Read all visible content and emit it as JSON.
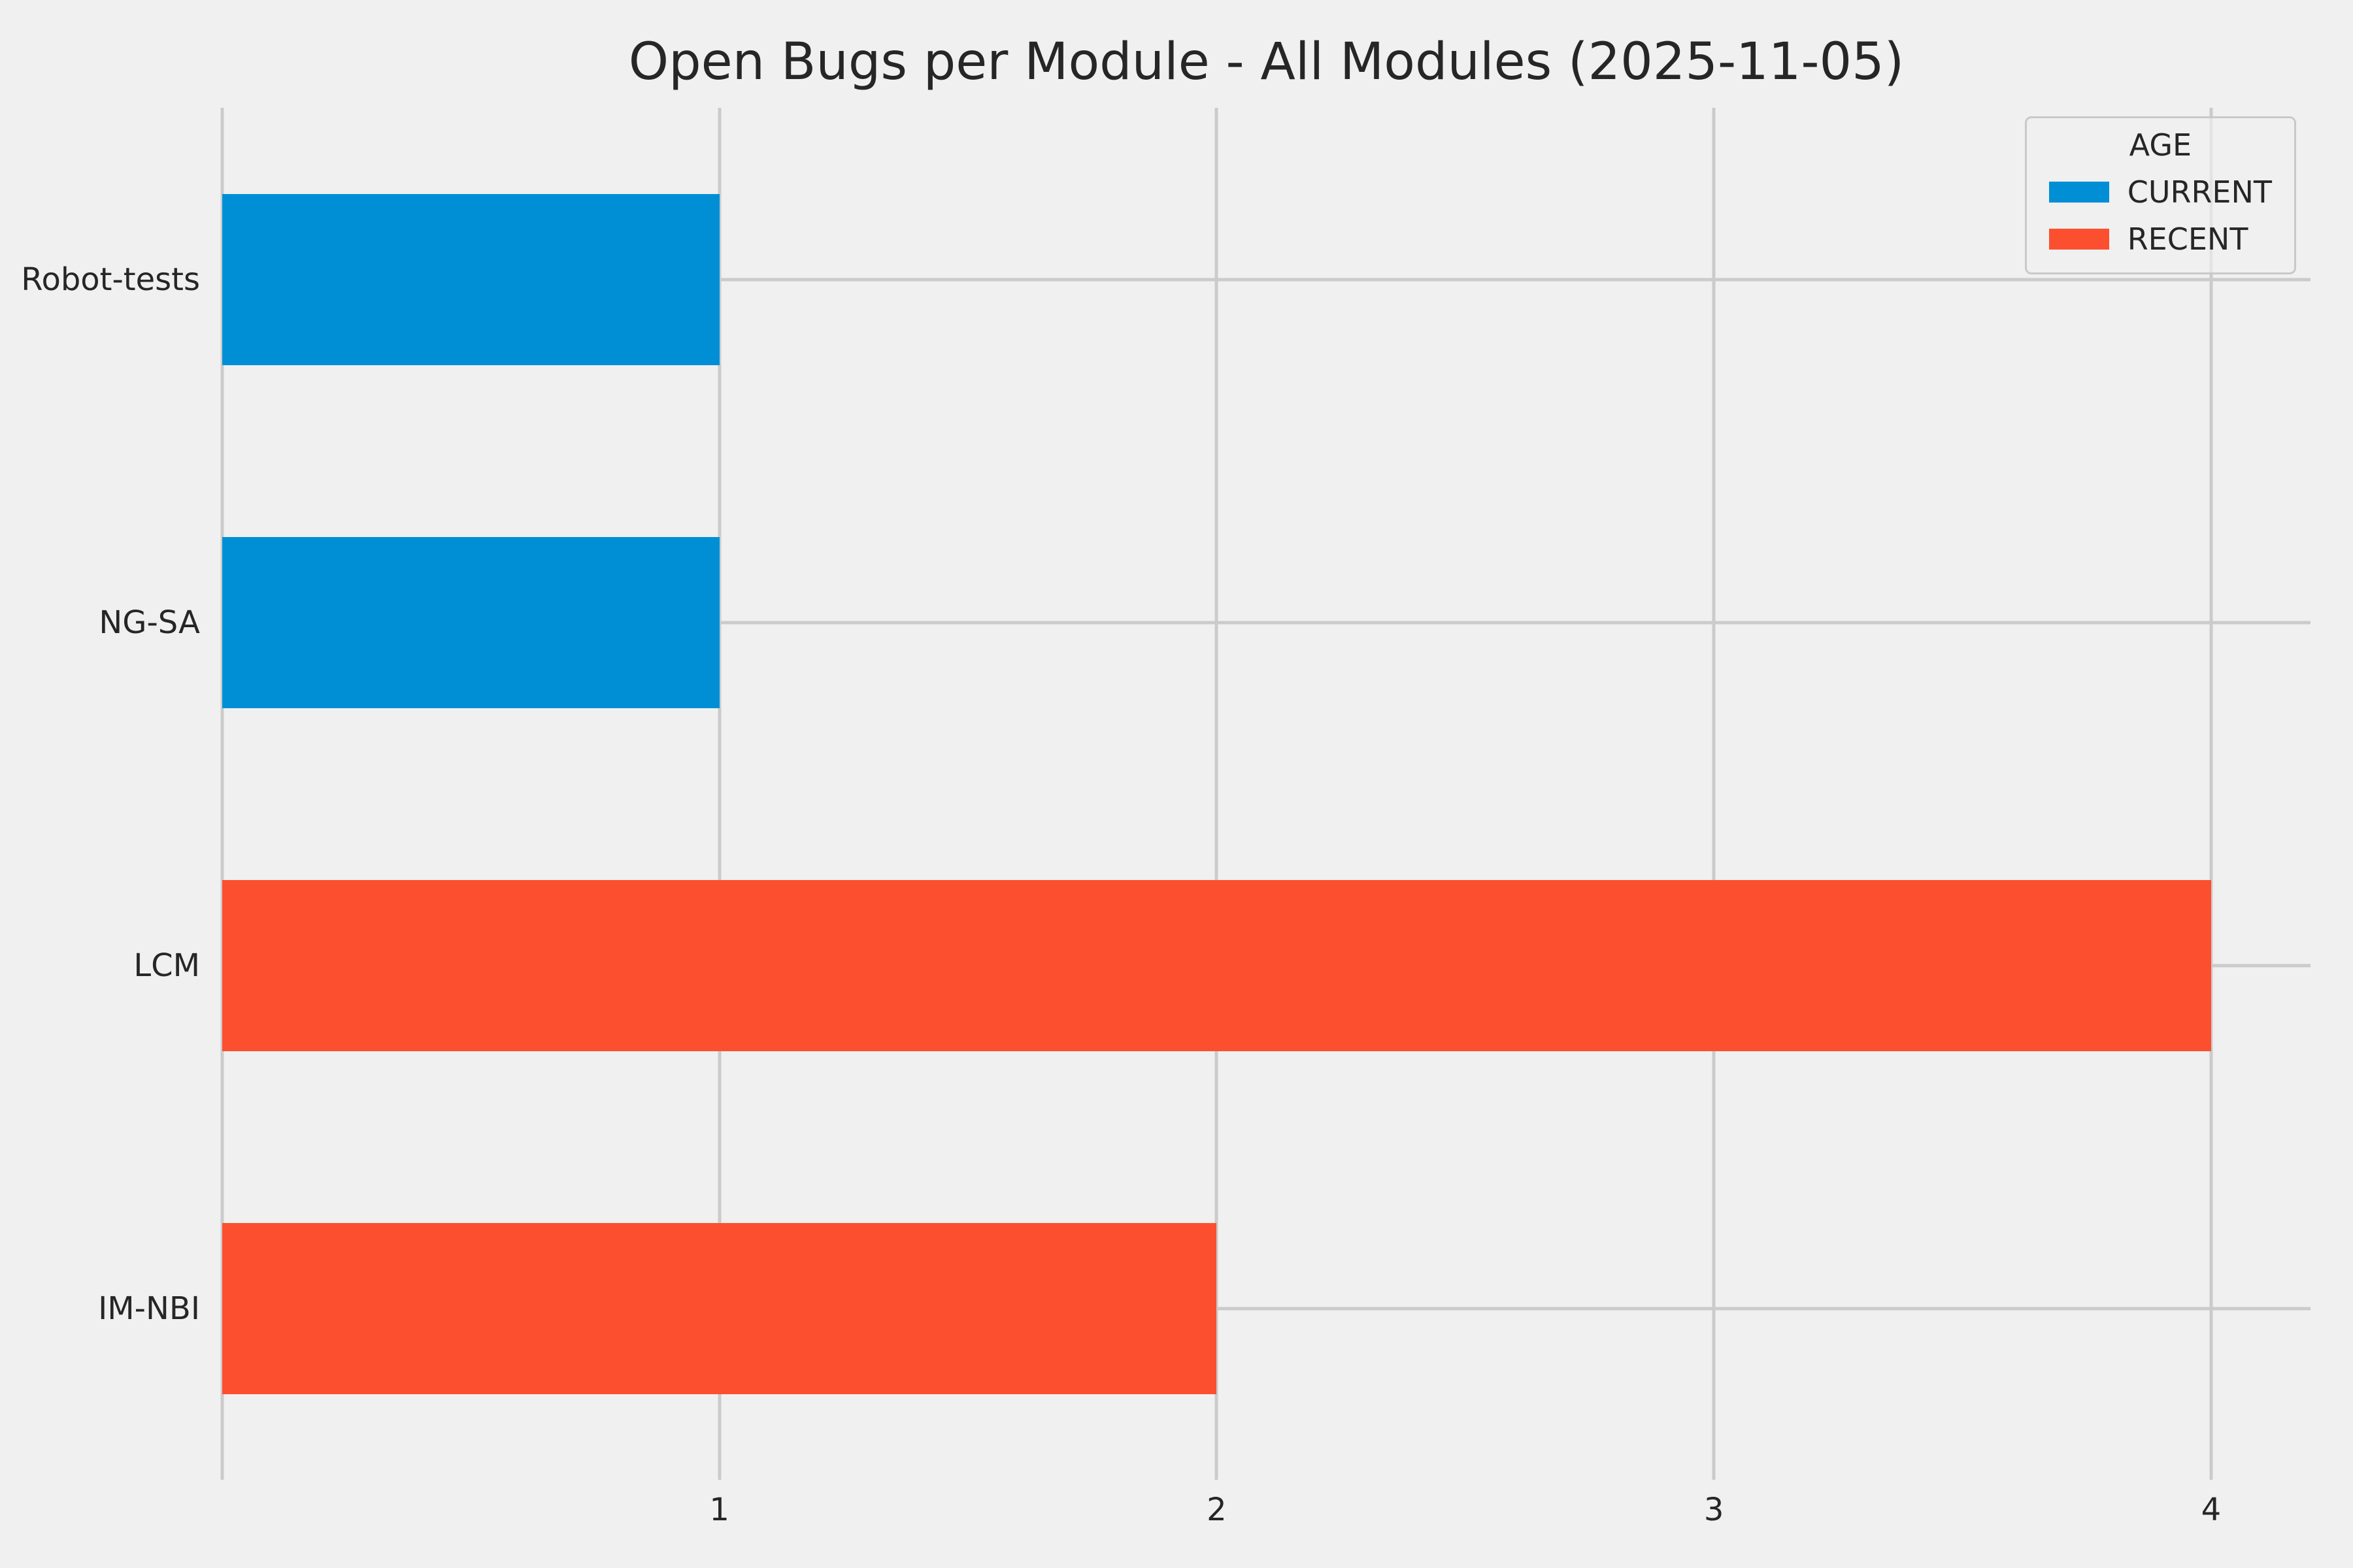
{
  "chart_data": {
    "type": "bar",
    "orientation": "horizontal",
    "title": "Open Bugs per Module - All Modules (2025-11-05)",
    "categories": [
      "Robot-tests",
      "NG-SA",
      "LCM",
      "IM-NBI"
    ],
    "series": [
      {
        "name": "CURRENT",
        "color": "#008fd5",
        "values": [
          1,
          1,
          0,
          0
        ]
      },
      {
        "name": "RECENT",
        "color": "#fc4f30",
        "values": [
          0,
          0,
          4,
          2
        ]
      }
    ],
    "bars": [
      {
        "category": "Robot-tests",
        "series": "CURRENT",
        "value": 1
      },
      {
        "category": "NG-SA",
        "series": "CURRENT",
        "value": 1
      },
      {
        "category": "LCM",
        "series": "RECENT",
        "value": 4
      },
      {
        "category": "IM-NBI",
        "series": "RECENT",
        "value": 2
      }
    ],
    "xlabel": "",
    "ylabel": "",
    "xlim": [
      0,
      4.2
    ],
    "x_ticks": [
      "1",
      "2",
      "3",
      "4"
    ],
    "grid_x_lines": [
      0,
      1,
      2,
      3,
      4
    ],
    "grid": true,
    "legend": {
      "title": "AGE",
      "position": "upper right",
      "entries": [
        {
          "label": "CURRENT",
          "color": "#008fd5"
        },
        {
          "label": "RECENT",
          "color": "#fc4f30"
        }
      ]
    }
  },
  "colors": {
    "background": "#f0f0f0",
    "gridline": "#cbcbcb",
    "text": "#262626",
    "current_blue": "#008fd5",
    "recent_red": "#fc4f30"
  }
}
